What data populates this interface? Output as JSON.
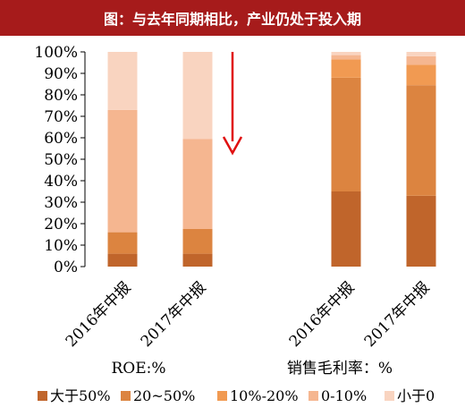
{
  "title": "图：与去年同期相比，产业仍处于投入期",
  "colors": {
    "title_bg": "#a61b1b",
    "arrow": "#e01010",
    "series": [
      "#c0652b",
      "#dc8440",
      "#f19a52",
      "#f5b690",
      "#f9d4c0"
    ]
  },
  "chart_data": {
    "type": "bar",
    "stacked": true,
    "ylim": [
      0,
      100
    ],
    "y_ticks": [
      "0%",
      "10%",
      "20%",
      "30%",
      "40%",
      "50%",
      "60%",
      "70%",
      "80%",
      "90%",
      "100%"
    ],
    "groups": [
      {
        "label": "ROE:%",
        "categories": [
          "2016年中报",
          "2017年中报"
        ]
      },
      {
        "label": "销售毛利率：%",
        "categories": [
          "2016年中报",
          "2017年中报"
        ]
      }
    ],
    "categories": [
      "2016年中报",
      "2017年中报",
      "2016年中报",
      "2017年中报"
    ],
    "series": [
      {
        "name": "大于50%",
        "values": [
          6,
          6,
          35,
          33
        ]
      },
      {
        "name": "20~50%",
        "values": [
          10,
          11.5,
          53,
          51.5
        ]
      },
      {
        "name": "10%-20%",
        "values": [
          0,
          0,
          8.5,
          9.5
        ]
      },
      {
        "name": "0-10%",
        "values": [
          57,
          42,
          2,
          4
        ]
      },
      {
        "name": "小于0",
        "values": [
          27,
          40.5,
          1.5,
          2
        ]
      }
    ],
    "legend_position": "bottom",
    "grid": false,
    "annotation": "down-arrow"
  }
}
